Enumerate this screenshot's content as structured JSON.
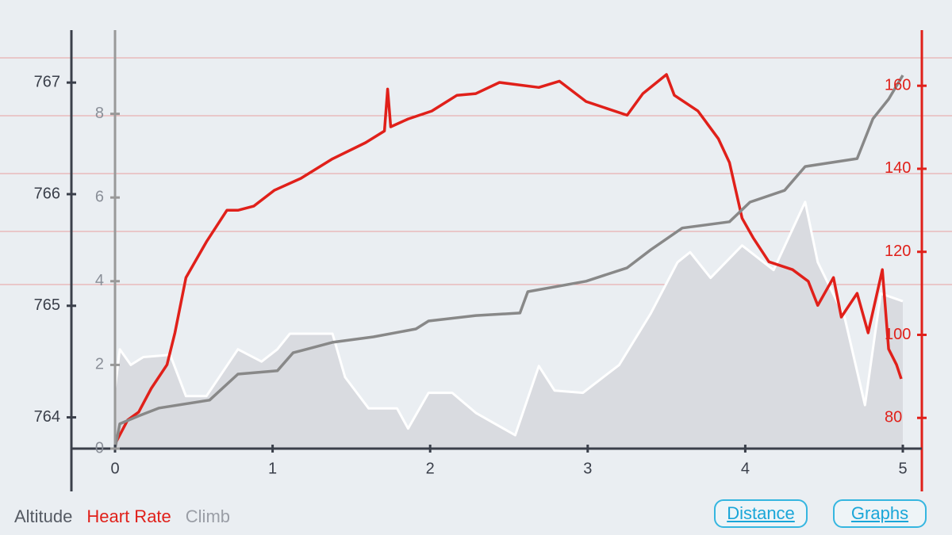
{
  "chart_data": {
    "type": "line",
    "xlim": [
      0,
      5
    ],
    "xticks": [
      0,
      1,
      2,
      3,
      4,
      5
    ],
    "ylim": [
      763.72,
      767.47
    ],
    "yticks": [
      764,
      765,
      766,
      767
    ],
    "y2lim": [
      72.6,
      173.4
    ],
    "y2ticks": [
      80,
      100,
      120,
      140,
      160
    ],
    "y3lim": [
      0,
      10
    ],
    "y3ticks": [
      0,
      2,
      4,
      6,
      8
    ],
    "series": [
      {
        "name": "Altitude",
        "color": "#d9dbe0",
        "axis": "y",
        "kind": "area",
        "x": [
          0,
          0.03,
          0.1,
          0.18,
          0.35,
          0.45,
          0.58,
          0.78,
          0.93,
          1.03,
          1.11,
          1.38,
          1.46,
          1.61,
          1.79,
          1.86,
          1.99,
          2.14,
          2.29,
          2.54,
          2.69,
          2.79,
          2.97,
          3.2,
          3.4,
          3.57,
          3.65,
          3.78,
          3.98,
          4.18,
          4.38,
          4.46,
          4.63,
          4.76,
          4.86,
          5
        ],
        "values": [
          764.26,
          764.61,
          764.47,
          764.54,
          764.56,
          764.19,
          764.19,
          764.61,
          764.5,
          764.61,
          764.75,
          764.75,
          764.36,
          764.08,
          764.08,
          763.9,
          764.22,
          764.22,
          764.04,
          763.84,
          764.46,
          764.24,
          764.22,
          764.47,
          764.93,
          765.39,
          765.48,
          765.25,
          765.54,
          765.32,
          765.93,
          765.39,
          764.9,
          764.11,
          765.11,
          765.04
        ]
      },
      {
        "name": "Heart Rate",
        "color": "#e0201a",
        "axis": "y2",
        "kind": "line",
        "x": [
          0,
          0.08,
          0.15,
          0.23,
          0.33,
          0.38,
          0.45,
          0.58,
          0.71,
          0.78,
          0.88,
          1.01,
          1.18,
          1.38,
          1.59,
          1.71,
          1.73,
          1.75,
          1.86,
          2.01,
          2.17,
          2.29,
          2.44,
          2.69,
          2.82,
          2.99,
          3.25,
          3.35,
          3.5,
          3.55,
          3.7,
          3.83,
          3.9,
          3.98,
          4.05,
          4.15,
          4.3,
          4.4,
          4.46,
          4.56,
          4.61,
          4.71,
          4.78,
          4.87,
          4.91,
          4.96,
          4.99
        ],
        "values": [
          73.7,
          79.5,
          81.4,
          87.1,
          92.8,
          100.5,
          113.8,
          122.4,
          130,
          130,
          131,
          134.8,
          137.7,
          142.4,
          146.3,
          149.1,
          159.2,
          150.1,
          152,
          153.9,
          157.7,
          158.1,
          160.8,
          159.6,
          161.1,
          156.2,
          152.9,
          158.1,
          162.7,
          157.7,
          153.9,
          147.2,
          141.5,
          128.1,
          123.4,
          117.6,
          115.7,
          112.9,
          107.1,
          113.8,
          104.3,
          110,
          100.5,
          115.7,
          96.6,
          92.8,
          89.4
        ]
      },
      {
        "name": "Climb",
        "color": "#888888",
        "axis": "y3",
        "kind": "line",
        "x": [
          0,
          0.03,
          0.15,
          0.28,
          0.6,
          0.78,
          1.03,
          1.13,
          1.38,
          1.64,
          1.91,
          1.99,
          2.29,
          2.57,
          2.62,
          2.99,
          3.25,
          3.4,
          3.6,
          3.9,
          4.03,
          4.25,
          4.38,
          4.71,
          4.81,
          4.91,
          5
        ],
        "values": [
          0,
          0.59,
          0.78,
          0.97,
          1.16,
          1.78,
          1.86,
          2.29,
          2.54,
          2.67,
          2.86,
          3.05,
          3.18,
          3.24,
          3.75,
          4.0,
          4.32,
          4.75,
          5.27,
          5.42,
          5.89,
          6.17,
          6.74,
          6.93,
          7.88,
          8.35,
          8.92
        ]
      }
    ]
  },
  "buttons": [
    "Distance",
    "Graphs"
  ]
}
